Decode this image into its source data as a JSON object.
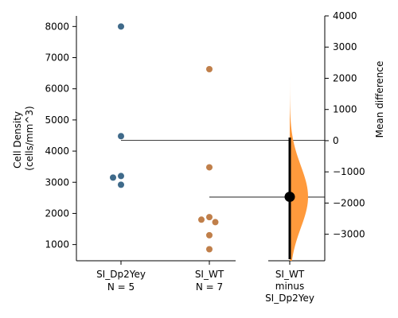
{
  "chart_data": {
    "type": "scatter",
    "subtype": "estimation-plot",
    "groups": [
      {
        "label": "SI_Dp2Yey",
        "n_label": "N = 5",
        "color": "#3f6a8a",
        "values": [
          8000,
          4480,
          3200,
          3150,
          2920
        ]
      },
      {
        "label": "SI_WT",
        "n_label": "N = 7",
        "color": "#c07f4a",
        "values": [
          6630,
          3480,
          1880,
          1800,
          1720,
          1300,
          850
        ]
      }
    ],
    "ylabel_lines": [
      "Cell Density",
      "(cells/mm^3)"
    ],
    "ylim": [
      480,
      8340
    ],
    "yticks": [
      "1000",
      "2000",
      "3000",
      "4000",
      "5000",
      "6000",
      "7000",
      "8000"
    ],
    "delta": {
      "label_lines": [
        "SI_WT",
        "minus",
        "SI_Dp2Yey"
      ],
      "ylabel": "Mean difference",
      "ylim": [
        -3850,
        4000
      ],
      "yticks": [
        "−3000",
        "−2000",
        "−1000",
        "0",
        "1000",
        "2000",
        "3000",
        "4000"
      ],
      "mean_difference": -1800,
      "ci": [
        -3800,
        100
      ],
      "fill_color": "#ff9a3c"
    }
  }
}
